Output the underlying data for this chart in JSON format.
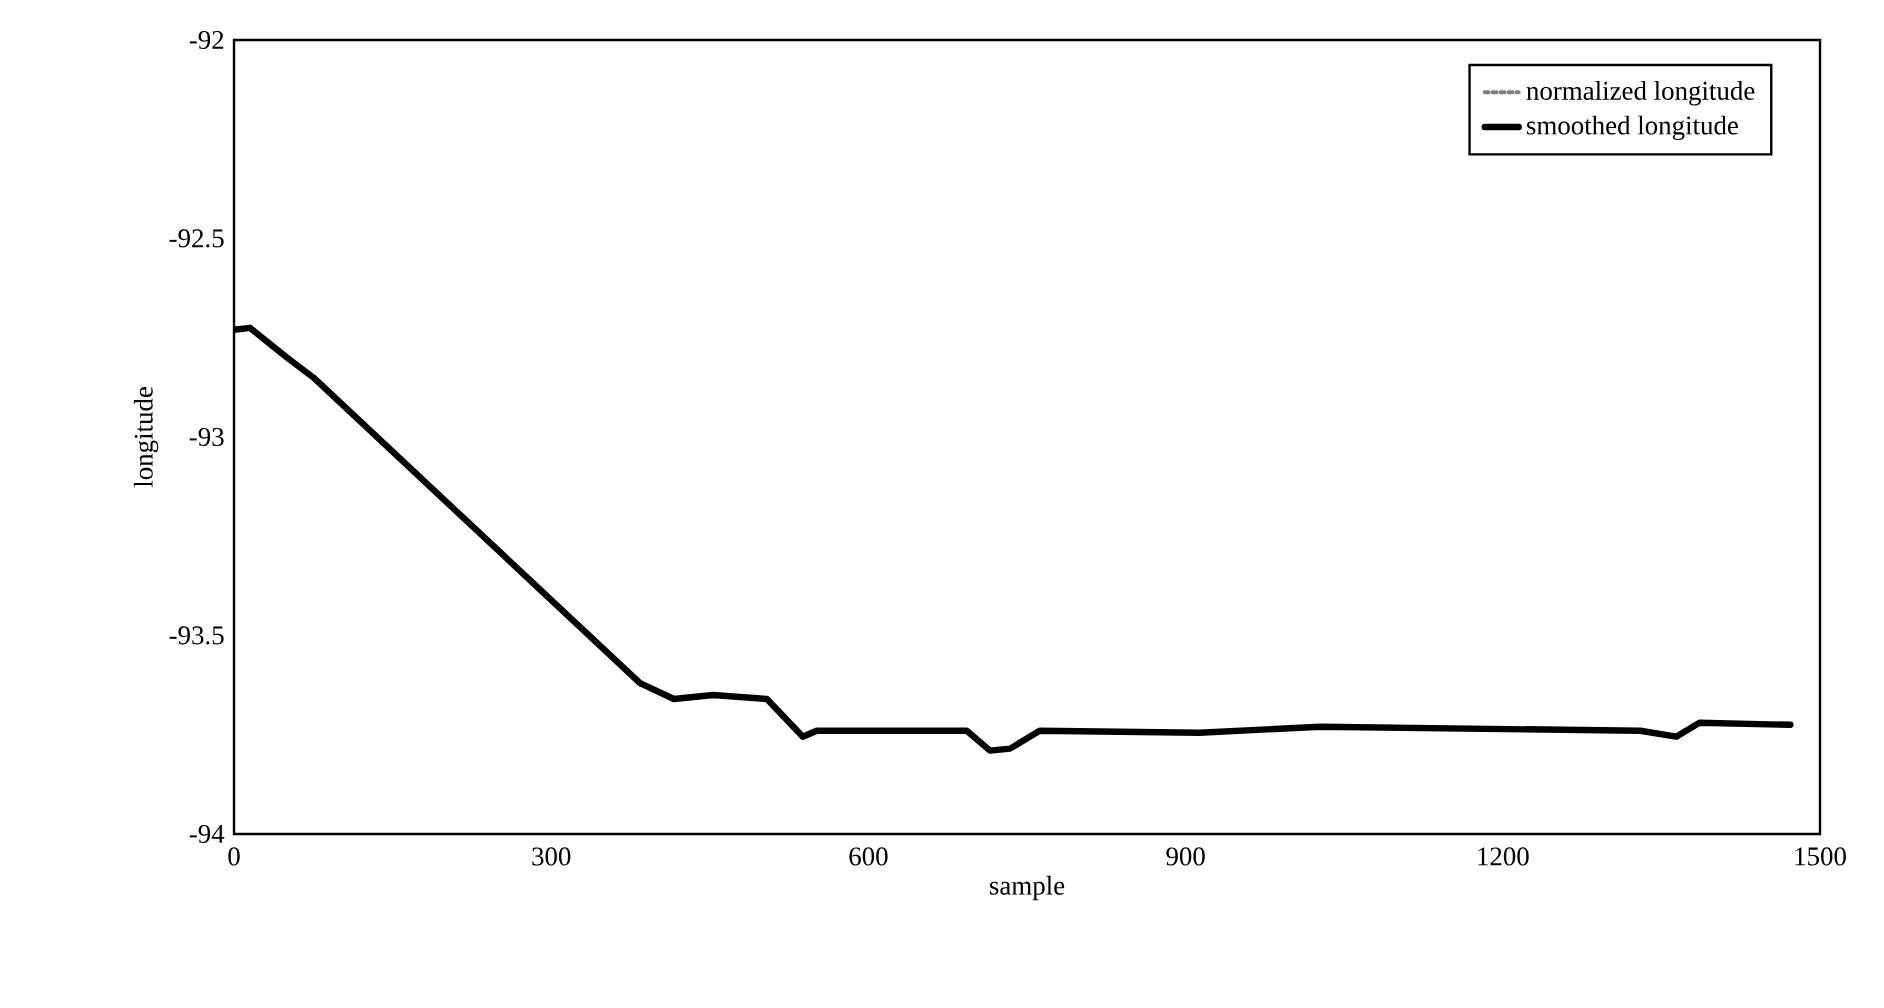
{
  "chart_data": {
    "type": "line",
    "xlabel": "sample",
    "ylabel": "longitude",
    "x": [
      0,
      15,
      50,
      75,
      384,
      416,
      453,
      504,
      538,
      551,
      693,
      715,
      734,
      762,
      913,
      1027,
      1330,
      1364,
      1386,
      1472
    ],
    "series": [
      {
        "name": "normalized longitude",
        "color": "#808080",
        "line_style": "dotted",
        "values": [
          null,
          null,
          null,
          null,
          null,
          null,
          null,
          null,
          null,
          null,
          null,
          null,
          null,
          null,
          null,
          null,
          null,
          null,
          null,
          null
        ]
      },
      {
        "name": "smoothed longitude",
        "color": "#000000",
        "line_style": "solid",
        "values": [
          -92.73,
          -92.725,
          -92.8,
          -92.85,
          -93.62,
          -93.66,
          -93.65,
          -93.66,
          -93.755,
          -93.74,
          -93.74,
          -93.79,
          -93.785,
          -93.74,
          -93.745,
          -93.73,
          -93.74,
          -93.755,
          -93.72,
          -93.725
        ]
      }
    ],
    "xlim": [
      0,
      1500
    ],
    "xticks": [
      0,
      300,
      600,
      900,
      1200,
      1500
    ],
    "ylim": [
      -94,
      -92
    ],
    "yticks": [
      -94,
      -93.5,
      -93,
      -92.5,
      -92
    ],
    "legend": "top right"
  }
}
